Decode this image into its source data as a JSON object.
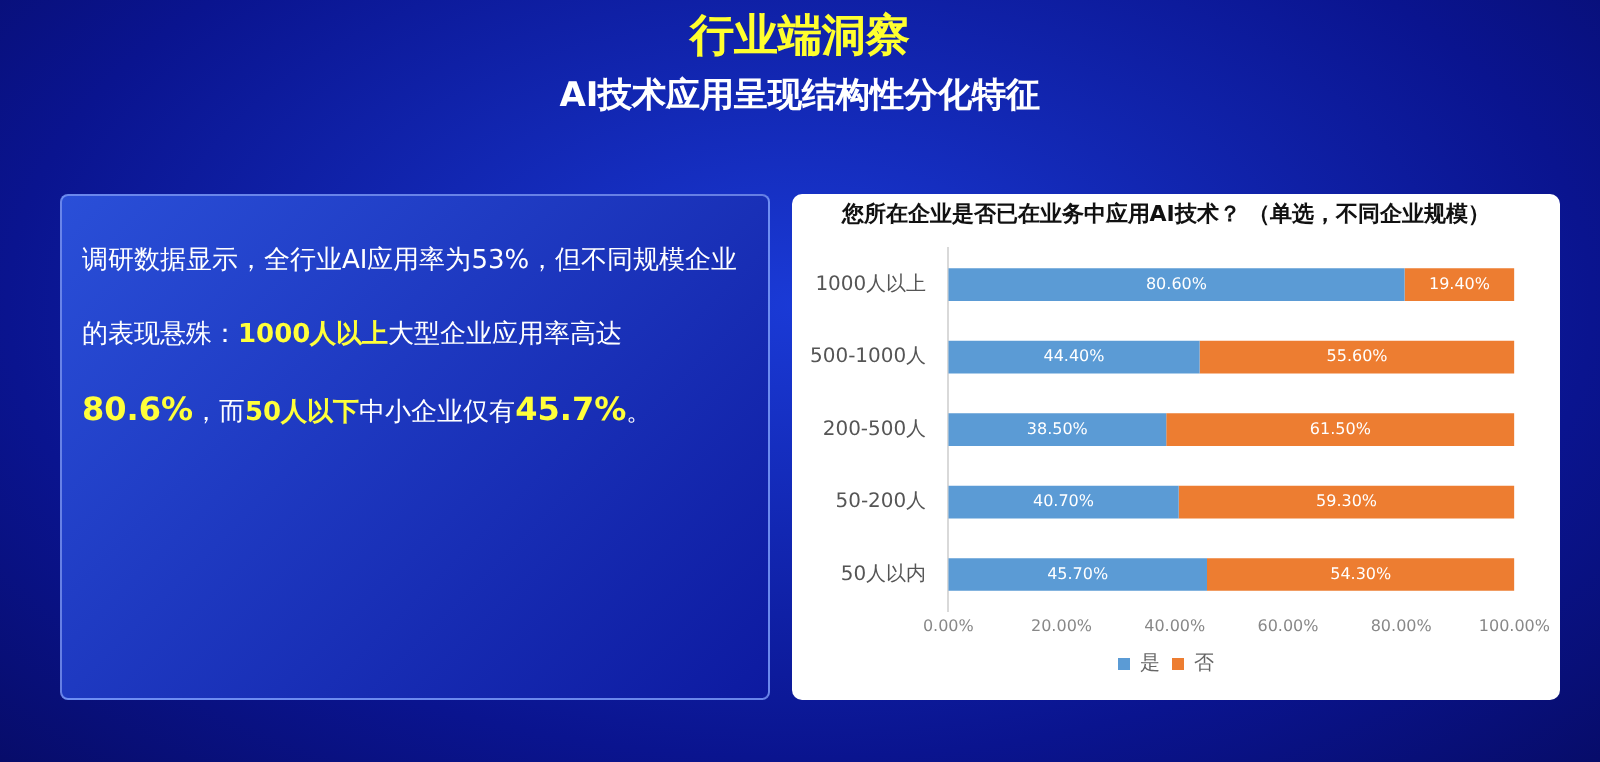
{
  "chart_data": [
    {
      "type": "other",
      "title": "行业端洞察",
      "subtitle": "AI技术应用呈现结构性分化特征",
      "annotations": [
        "调研数据显示，全行业AI应用率为53%，但不同规模企业的表现悬殊：",
        "1000人以上",
        "大型企业应用率高达",
        "80.6%",
        "，而",
        "50人以下",
        "中小企业仅有",
        "45.7%",
        "。"
      ]
    },
    {
      "type": "bar",
      "orientation": "horizontal",
      "stacked": true,
      "title": "您所在企业是否已在业务中应用AI技术？ （单选，不同企业规模）",
      "categories": [
        "1000人以上",
        "500-1000人",
        "200-500人",
        "50-200人",
        "50人以内"
      ],
      "series": [
        {
          "name": "是",
          "color": "#5b9bd5",
          "values": [
            80.6,
            44.4,
            38.5,
            40.7,
            45.7
          ],
          "value_labels": [
            "80.60%",
            "44.40%",
            "38.50%",
            "40.70%",
            "45.70%"
          ]
        },
        {
          "name": "否",
          "color": "#ed7d31",
          "values": [
            19.4,
            55.6,
            61.5,
            59.3,
            54.3
          ],
          "value_labels": [
            "19.40%",
            "55.60%",
            "61.50%",
            "59.30%",
            "54.30%"
          ]
        }
      ],
      "xlim": [
        0,
        100
      ],
      "xticks": [
        {
          "value": 0,
          "label": "0.00%"
        },
        {
          "value": 20,
          "label": "20.00%"
        },
        {
          "value": 40,
          "label": "40.00%"
        },
        {
          "value": 60,
          "label": "60.00%"
        },
        {
          "value": 80,
          "label": "80.00%"
        },
        {
          "value": 100,
          "label": "100.00%"
        }
      ],
      "grid": false,
      "legend": "bottom"
    }
  ]
}
